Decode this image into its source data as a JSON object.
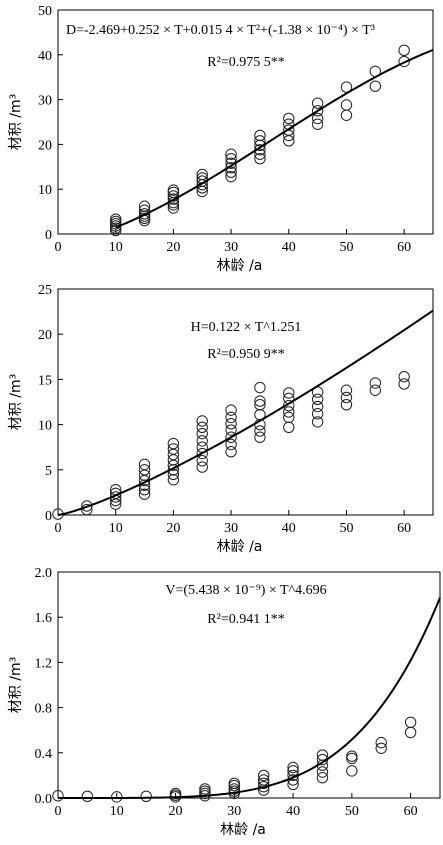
{
  "chart_data": [
    {
      "type": "scatter",
      "xlabel": "林龄 /a",
      "ylabel": "材积 /m³",
      "xlim": [
        0,
        65
      ],
      "ylim": [
        0,
        50
      ],
      "xticks": [
        "0",
        "10",
        "20",
        "30",
        "40",
        "50",
        "60"
      ],
      "yticks": [
        "0",
        "10",
        "20",
        "30",
        "40",
        "50"
      ],
      "annotations": [
        "D=-2.469+0.252 × T+0.015 4 × T²+(-1.38 × 10⁻⁴) × T³",
        "R²=0.975 5**"
      ],
      "points": [
        [
          10,
          0.8
        ],
        [
          10,
          1.3
        ],
        [
          10,
          1.8
        ],
        [
          10,
          2.3
        ],
        [
          10,
          2.8
        ],
        [
          10,
          3.3
        ],
        [
          15,
          3.0
        ],
        [
          15,
          3.5
        ],
        [
          15,
          4.0
        ],
        [
          15,
          4.5
        ],
        [
          15,
          5.3
        ],
        [
          15,
          6.2
        ],
        [
          20,
          5.8
        ],
        [
          20,
          6.5
        ],
        [
          20,
          7.0
        ],
        [
          20,
          7.8
        ],
        [
          20,
          8.5
        ],
        [
          20,
          9.3
        ],
        [
          20,
          9.8
        ],
        [
          25,
          9.5
        ],
        [
          25,
          10.3
        ],
        [
          25,
          11.0
        ],
        [
          25,
          11.8
        ],
        [
          25,
          12.5
        ],
        [
          25,
          13.3
        ],
        [
          30,
          12.8
        ],
        [
          30,
          13.8
        ],
        [
          30,
          14.8
        ],
        [
          30,
          15.8
        ],
        [
          30,
          16.8
        ],
        [
          30,
          17.8
        ],
        [
          35,
          16.8
        ],
        [
          35,
          17.8
        ],
        [
          35,
          18.8
        ],
        [
          35,
          19.8
        ],
        [
          35,
          20.8
        ],
        [
          35,
          22.0
        ],
        [
          40,
          20.8
        ],
        [
          40,
          22.0
        ],
        [
          40,
          23.2
        ],
        [
          40,
          24.5
        ],
        [
          40,
          25.8
        ],
        [
          45,
          24.5
        ],
        [
          45,
          25.8
        ],
        [
          45,
          27.5
        ],
        [
          45,
          29.2
        ],
        [
          50,
          26.5
        ],
        [
          50,
          28.8
        ],
        [
          50,
          32.8
        ],
        [
          55,
          33.0
        ],
        [
          55,
          36.3
        ],
        [
          60,
          38.5
        ],
        [
          60,
          41.0
        ]
      ]
    },
    {
      "type": "scatter",
      "xlabel": "林龄 /a",
      "ylabel": "材积 /m³",
      "xlim": [
        0,
        65
      ],
      "ylim": [
        0,
        25
      ],
      "xticks": [
        "0",
        "10",
        "20",
        "30",
        "40",
        "50",
        "60"
      ],
      "yticks": [
        "0",
        "5",
        "10",
        "15",
        "20",
        "25"
      ],
      "annotations": [
        "H=0.122 × T^1.251",
        "R²=0.950 9**"
      ],
      "points": [
        [
          0,
          0.1
        ],
        [
          5,
          0.6
        ],
        [
          5,
          1.0
        ],
        [
          10,
          1.2
        ],
        [
          10,
          1.6
        ],
        [
          10,
          2.0
        ],
        [
          10,
          2.4
        ],
        [
          10,
          2.8
        ],
        [
          15,
          2.3
        ],
        [
          15,
          2.8
        ],
        [
          15,
          3.3
        ],
        [
          15,
          3.8
        ],
        [
          15,
          4.4
        ],
        [
          15,
          5.0
        ],
        [
          15,
          5.6
        ],
        [
          20,
          3.9
        ],
        [
          20,
          4.5
        ],
        [
          20,
          5.0
        ],
        [
          20,
          5.5
        ],
        [
          20,
          6.1
        ],
        [
          20,
          6.7
        ],
        [
          20,
          7.3
        ],
        [
          20,
          7.9
        ],
        [
          25,
          5.3
        ],
        [
          25,
          6.0
        ],
        [
          25,
          6.8
        ],
        [
          25,
          7.5
        ],
        [
          25,
          8.2
        ],
        [
          25,
          9.0
        ],
        [
          25,
          9.7
        ],
        [
          25,
          10.4
        ],
        [
          30,
          7.0
        ],
        [
          30,
          7.8
        ],
        [
          30,
          8.6
        ],
        [
          30,
          9.4
        ],
        [
          30,
          10.1
        ],
        [
          30,
          10.8
        ],
        [
          30,
          11.6
        ],
        [
          35,
          8.6
        ],
        [
          35,
          9.3
        ],
        [
          35,
          10.0
        ],
        [
          35,
          11.1
        ],
        [
          35,
          12.2
        ],
        [
          35,
          12.6
        ],
        [
          35,
          14.1
        ],
        [
          40,
          9.7
        ],
        [
          40,
          10.8
        ],
        [
          40,
          11.4
        ],
        [
          40,
          12.1
        ],
        [
          40,
          12.9
        ],
        [
          40,
          13.5
        ],
        [
          45,
          10.3
        ],
        [
          45,
          11.2
        ],
        [
          45,
          12.0
        ],
        [
          45,
          12.8
        ],
        [
          45,
          13.6
        ],
        [
          50,
          12.2
        ],
        [
          50,
          13.0
        ],
        [
          50,
          13.8
        ],
        [
          55,
          13.8
        ],
        [
          55,
          14.6
        ],
        [
          60,
          14.5
        ],
        [
          60,
          15.3
        ]
      ]
    },
    {
      "type": "scatter",
      "xlabel": "林龄 /a",
      "ylabel": "材积 /m³",
      "xlim": [
        0,
        65
      ],
      "ylim": [
        0,
        2.0
      ],
      "xticks": [
        "0",
        "10",
        "20",
        "30",
        "40",
        "50",
        "60"
      ],
      "yticks": [
        "0.0",
        "0.4",
        "0.8",
        "1.2",
        "1.6",
        "2.0"
      ],
      "annotations": [
        "V=(5.438 × 10⁻⁹) × T^4.696",
        "R²=0.941 1**"
      ],
      "points": [
        [
          0,
          0.02
        ],
        [
          5,
          0.015
        ],
        [
          10,
          0.01
        ],
        [
          15,
          0.015
        ],
        [
          20,
          0.01
        ],
        [
          20,
          0.025
        ],
        [
          20,
          0.04
        ],
        [
          25,
          0.02
        ],
        [
          25,
          0.04
        ],
        [
          25,
          0.06
        ],
        [
          25,
          0.08
        ],
        [
          30,
          0.04
        ],
        [
          30,
          0.06
        ],
        [
          30,
          0.08
        ],
        [
          30,
          0.11
        ],
        [
          30,
          0.13
        ],
        [
          35,
          0.07
        ],
        [
          35,
          0.1
        ],
        [
          35,
          0.13
        ],
        [
          35,
          0.16
        ],
        [
          35,
          0.2
        ],
        [
          40,
          0.12
        ],
        [
          40,
          0.16
        ],
        [
          40,
          0.2
        ],
        [
          40,
          0.24
        ],
        [
          40,
          0.27
        ],
        [
          45,
          0.18
        ],
        [
          45,
          0.23
        ],
        [
          45,
          0.29
        ],
        [
          45,
          0.34
        ],
        [
          45,
          0.38
        ],
        [
          50,
          0.24
        ],
        [
          50,
          0.35
        ],
        [
          50,
          0.37
        ],
        [
          55,
          0.44
        ],
        [
          55,
          0.49
        ],
        [
          60,
          0.58
        ],
        [
          60,
          0.67
        ]
      ]
    }
  ]
}
